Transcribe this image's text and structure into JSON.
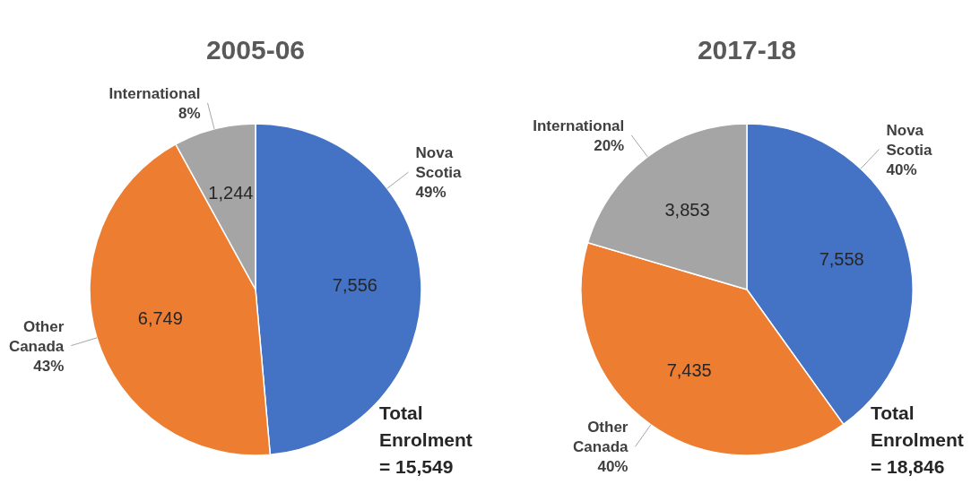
{
  "chart_data": [
    {
      "type": "pie",
      "title": "2005-06",
      "categories": [
        "Nova Scotia",
        "Other Canada",
        "International"
      ],
      "values": [
        7556,
        6749,
        1244
      ],
      "value_labels": [
        "7,556",
        "6,749",
        "1,244"
      ],
      "colors": [
        "#4472c4",
        "#ed7d31",
        "#a5a5a5"
      ],
      "annotations": [
        {
          "text": "49%",
          "x": "Nova Scotia"
        },
        {
          "text": "43%",
          "x": "Other Canada"
        },
        {
          "text": "8%",
          "x": "International"
        },
        "Total Enrolment = 15,549"
      ]
    },
    {
      "type": "pie",
      "title": "2017-18",
      "categories": [
        "Nova Scotia",
        "Other Canada",
        "International"
      ],
      "values": [
        7558,
        7435,
        3853
      ],
      "value_labels": [
        "7,558",
        "7,435",
        "3,853"
      ],
      "colors": [
        "#4472c4",
        "#ed7d31",
        "#a5a5a5"
      ],
      "annotations": [
        {
          "text": "40%",
          "x": "Nova Scotia"
        },
        {
          "text": "40%",
          "x": "Other Canada"
        },
        {
          "text": "20%",
          "x": "International"
        },
        "Total Enrolment = 18,846"
      ]
    }
  ]
}
